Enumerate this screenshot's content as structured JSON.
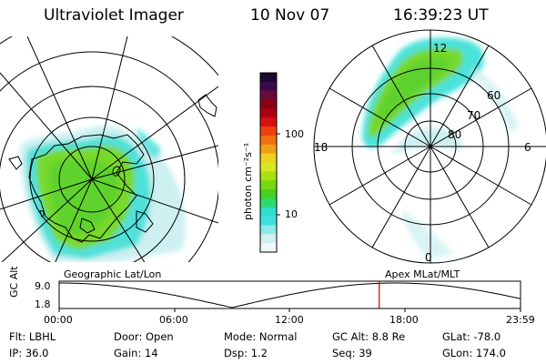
{
  "header": {
    "instrument": "Ultraviolet Imager",
    "date": "10 Nov 07",
    "time": "16:39:23 UT"
  },
  "colorbar": {
    "unit_label": "photon cm⁻²s⁻¹",
    "ticks": [
      "100",
      "10"
    ],
    "colors_top_to_bottom": [
      "#1a0a2e",
      "#3a0a4a",
      "#6a0a3a",
      "#8a0010",
      "#b00010",
      "#d81010",
      "#f04010",
      "#f07010",
      "#f0a010",
      "#f0d020",
      "#d8e820",
      "#a8e010",
      "#78d810",
      "#48d020",
      "#30d870",
      "#30e0c8",
      "#40e0e0",
      "#90e8e8",
      "#d0f0f0",
      "#f0f8f8"
    ]
  },
  "left_map": {
    "caption": "Geographic Lat/Lon"
  },
  "right_map": {
    "caption": "Apex  MLat/MLT",
    "mlt_labels": {
      "top": "12",
      "left": "18",
      "right": "6",
      "bottom": "0"
    },
    "mlat_labels": [
      "60",
      "70",
      "80"
    ]
  },
  "timeline": {
    "axis_label": "GC Alt",
    "y_ticks": [
      "9.0",
      "1.8"
    ],
    "x_ticks": [
      "00:00",
      "06:00",
      "12:00",
      "18:00",
      "23:59"
    ],
    "current_marker_hour": 16.65,
    "marker_color": "#c00000"
  },
  "info": {
    "row1": [
      {
        "label": "Flt:",
        "value": "LBHL"
      },
      {
        "label": "Door:",
        "value": "Open"
      },
      {
        "label": "Mode:",
        "value": "Normal"
      },
      {
        "label": "GC Alt:",
        "value": "8.8 Re"
      },
      {
        "label": "GLat:",
        "value": "-78.0"
      }
    ],
    "row2": [
      {
        "label": "IP:",
        "value": "36.0"
      },
      {
        "label": "Gain:",
        "value": "14"
      },
      {
        "label": "Dsp:",
        "value": "1.2"
      },
      {
        "label": "Seq:",
        "value": "39"
      },
      {
        "label": "GLon:",
        "value": "174.0"
      }
    ]
  }
}
